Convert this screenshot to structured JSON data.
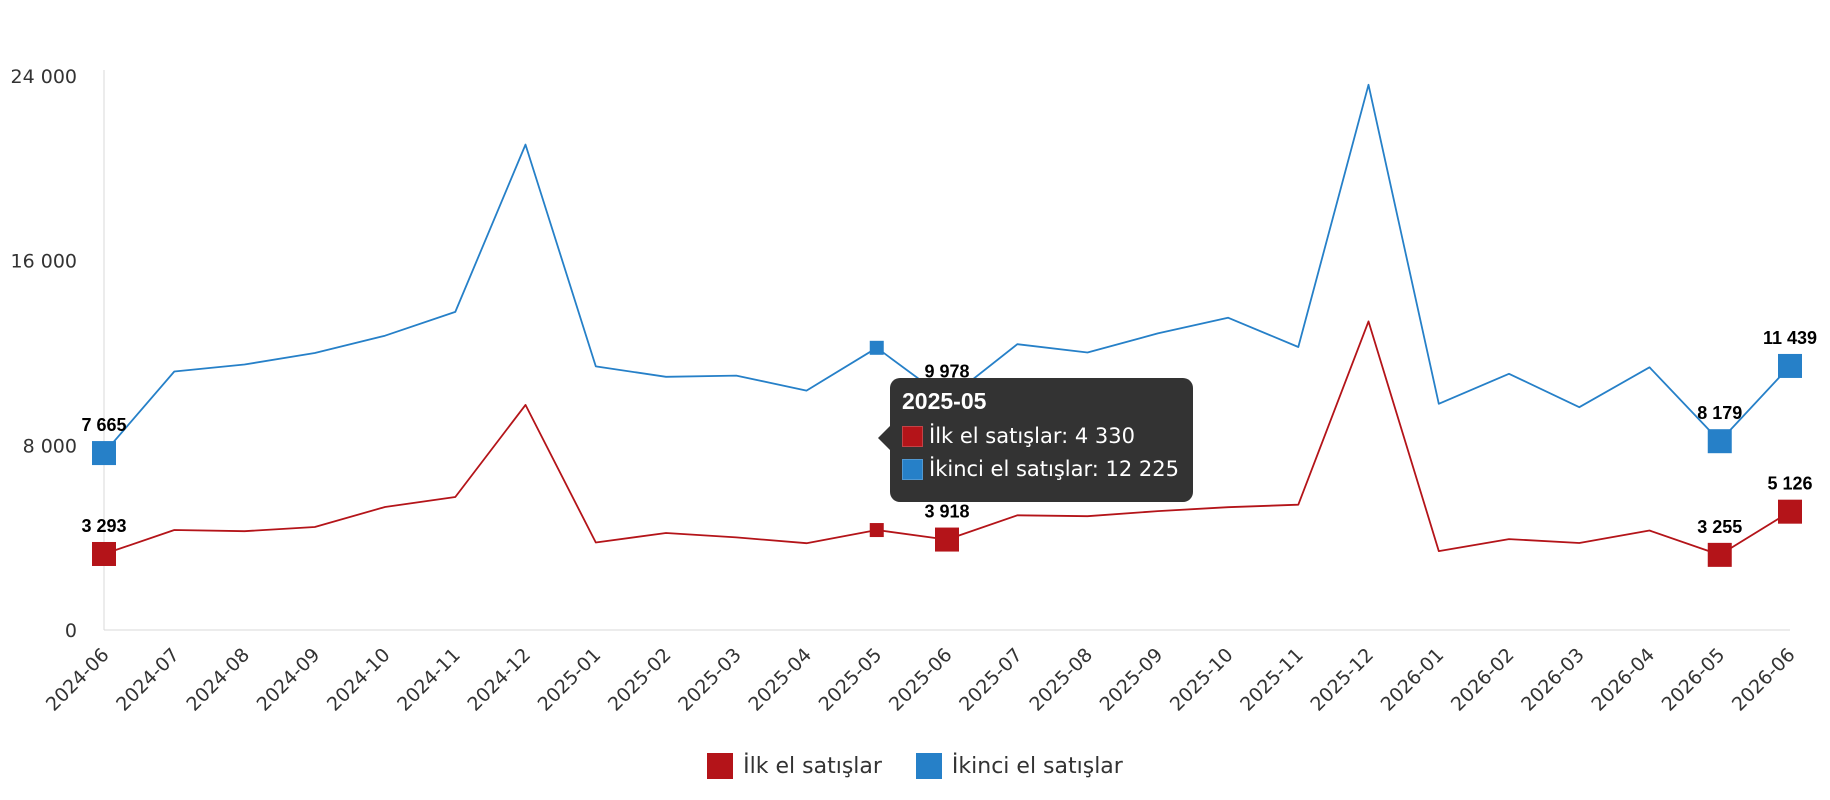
{
  "colors": {
    "first": "#b41419",
    "second": "#2680c8"
  },
  "chart_data": {
    "type": "line",
    "title": "",
    "xlabel": "",
    "ylabel": "",
    "ylim": [
      0,
      24000
    ],
    "yticks": [
      0,
      8000,
      16000,
      24000
    ],
    "ytick_labels": [
      "0",
      "8 000",
      "16 000",
      "24 000"
    ],
    "categories": [
      "2024-06",
      "2024-07",
      "2024-08",
      "2024-09",
      "2024-10",
      "2024-11",
      "2024-12",
      "2025-01",
      "2025-02",
      "2025-03",
      "2025-04",
      "2025-05",
      "2025-06",
      "2025-07",
      "2025-08",
      "2025-09",
      "2025-10",
      "2025-11",
      "2025-12",
      "2026-01",
      "2026-02",
      "2026-03",
      "2026-04",
      "2026-05",
      "2026-06"
    ],
    "series": [
      {
        "name": "İlk el satışlar",
        "color": "#b41419",
        "values": [
          3293,
          4330,
          4280,
          4460,
          5330,
          5760,
          9750,
          3790,
          4200,
          4010,
          3760,
          4330,
          3918,
          4970,
          4930,
          5150,
          5320,
          5430,
          13370,
          3420,
          3940,
          3770,
          4310,
          3255,
          5126
        ]
      },
      {
        "name": "İkinci el satışlar",
        "color": "#2680c8",
        "values": [
          7665,
          11200,
          11500,
          12000,
          12750,
          13780,
          21030,
          11420,
          10970,
          11020,
          10370,
          12225,
          9978,
          12380,
          12020,
          12850,
          13530,
          12260,
          23620,
          9800,
          11100,
          9650,
          11380,
          8179,
          11439
        ]
      }
    ],
    "data_labels": [
      {
        "series": 0,
        "index": 0,
        "text": "3 293"
      },
      {
        "series": 0,
        "index": 12,
        "text": "3 918"
      },
      {
        "series": 0,
        "index": 23,
        "text": "3 255"
      },
      {
        "series": 0,
        "index": 24,
        "text": "5 126"
      },
      {
        "series": 1,
        "index": 0,
        "text": "7 665"
      },
      {
        "series": 1,
        "index": 12,
        "text": "9 978"
      },
      {
        "series": 1,
        "index": 23,
        "text": "8 179"
      },
      {
        "series": 1,
        "index": 24,
        "text": "11 439"
      }
    ],
    "highlighted_index": 11,
    "legend": {
      "placement": "bottom-center"
    },
    "grid": false
  },
  "tooltip": {
    "title": "2025-05",
    "rows": [
      {
        "label": "İlk el satışlar: 4 330",
        "color": "#b41419"
      },
      {
        "label": "İkinci el satışlar: 12 225",
        "color": "#2680c8"
      }
    ]
  },
  "legend": {
    "items": [
      {
        "label": "İlk el satışlar",
        "color": "#b41419"
      },
      {
        "label": "İkinci el satışlar",
        "color": "#2680c8"
      }
    ]
  }
}
